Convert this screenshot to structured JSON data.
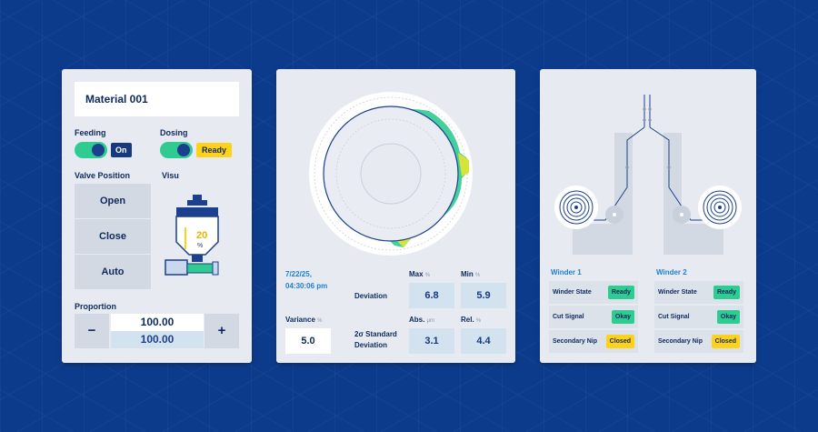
{
  "left_panel": {
    "title": "Material 001",
    "feeding": {
      "label": "Feeding",
      "tag": "On"
    },
    "dosing": {
      "label": "Dosing",
      "tag": "Ready"
    },
    "valve_position": {
      "label": "Valve Position",
      "buttons": [
        "Open",
        "Close",
        "Auto"
      ]
    },
    "visu": {
      "label": "Visu",
      "fill_percent_value": "20",
      "fill_unit": "%"
    },
    "proportion": {
      "label": "Proportion",
      "minus": "−",
      "plus": "+",
      "value_set": "100.00",
      "value_actual": "100.00"
    }
  },
  "middle_panel": {
    "timestamp_line1": "7/22/25,",
    "timestamp_line2": "04:30:06 pm",
    "max": {
      "label": "Max",
      "unit": "%"
    },
    "min": {
      "label": "Min",
      "unit": "%"
    },
    "deviation_label": "Deviation",
    "deviation_max": "6.8",
    "deviation_min": "5.9",
    "variance": {
      "label": "Variance",
      "unit": "%",
      "value": "5.0"
    },
    "std_label_line1": "2σ Standard",
    "std_label_line2": "Deviation",
    "abs": {
      "label": "Abs.",
      "unit": "μm",
      "value": "3.1"
    },
    "rel": {
      "label": "Rel.",
      "unit": "%",
      "value": "4.4"
    }
  },
  "right_panel": {
    "winders": [
      {
        "title": "Winder 1",
        "rows": [
          {
            "label": "Winder State",
            "badge": "Ready",
            "color": "#2fcb91"
          },
          {
            "label": "Cut Signal",
            "badge": "Okay",
            "color": "#2fcb91"
          },
          {
            "label": "Secondary Nip",
            "badge": "Closed",
            "color": "#ffd21a"
          }
        ]
      },
      {
        "title": "Winder 2",
        "rows": [
          {
            "label": "Winder State",
            "badge": "Ready",
            "color": "#2fcb91"
          },
          {
            "label": "Cut Signal",
            "badge": "Okay",
            "color": "#2fcb91"
          },
          {
            "label": "Secondary Nip",
            "badge": "Closed",
            "color": "#ffd21a"
          }
        ]
      }
    ]
  }
}
